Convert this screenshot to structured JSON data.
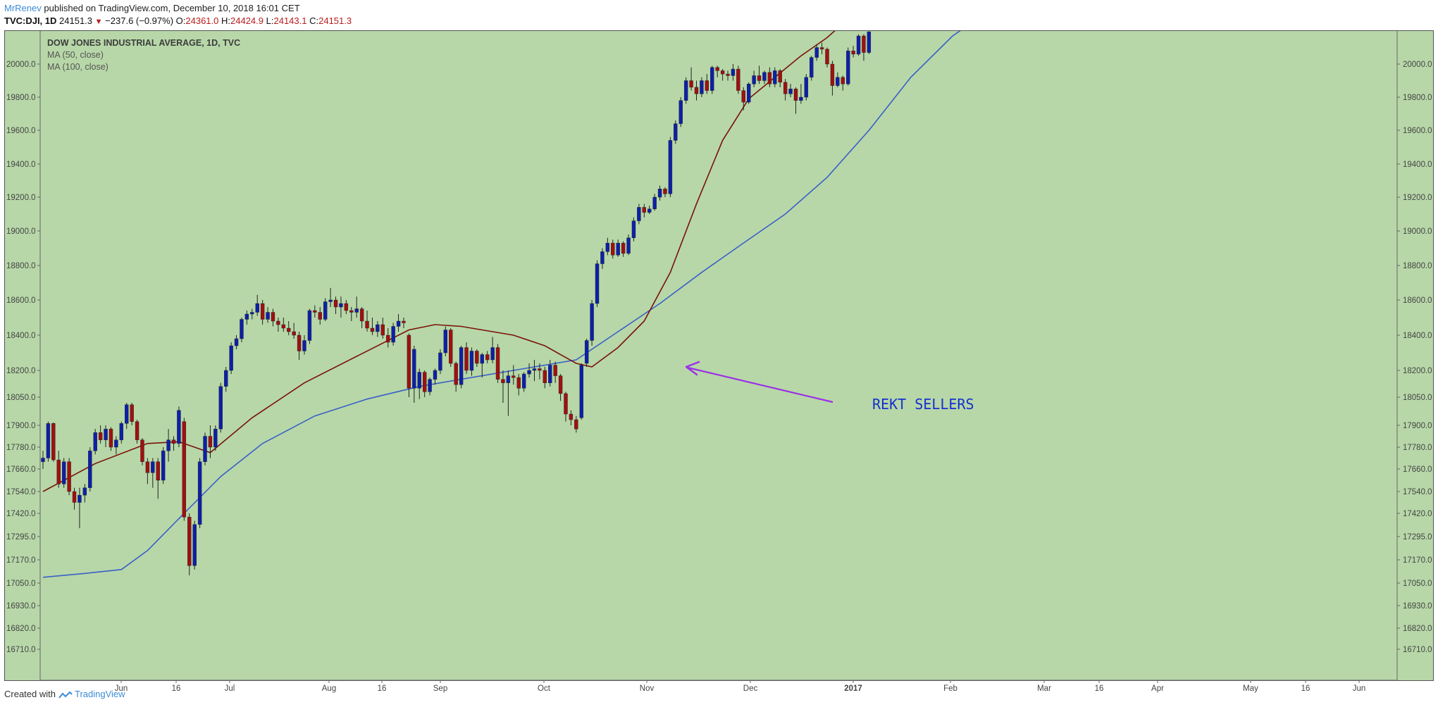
{
  "header": {
    "author": "MrRenev",
    "published_text": "published on TradingView.com, December 10, 2018 16:01 CET",
    "symbol": "TVC:DJI, 1D",
    "last": "24151.3",
    "change": "−237.6 (−0.97%)",
    "o_label": "O:",
    "o_value": "24361.0",
    "h_label": "H:",
    "h_value": "24424.9",
    "l_label": "L:",
    "l_value": "24143.1",
    "c_label": "C:",
    "c_value": "24151.3"
  },
  "legend": {
    "title": "DOW JONES INDUSTRIAL AVERAGE, 1D, TVC",
    "ma50": "MA (50, close)",
    "ma100": "MA (100, close)"
  },
  "annotation": {
    "text": "REKT  SELLERS",
    "color": "#9b30e8"
  },
  "footer": {
    "created": "Created with",
    "brand": "TradingView"
  },
  "colors": {
    "background": "#b7d7a8",
    "up": "#0d1fa8",
    "down": "#a01010",
    "ma50": "#7a1208",
    "ma100": "#3a5fc8",
    "annotation_text": "#1530d0"
  },
  "chart_data": {
    "type": "candlestick",
    "title": "DOW JONES INDUSTRIAL AVERAGE, 1D, TVC",
    "y_ticks": [
      20000.0,
      19800.0,
      19600.0,
      19400.0,
      19200.0,
      19000.0,
      18800.0,
      18600.0,
      18400.0,
      18200.0,
      18050.0,
      17900.0,
      17780.0,
      17660.0,
      17540.0,
      17420.0,
      17295.0,
      17170.0,
      17050.0,
      16930.0,
      16820.0,
      16710.0
    ],
    "x_ticks": [
      "Jun",
      "16",
      "Jul",
      "Aug",
      "16",
      "Sep",
      "Oct",
      "Nov",
      "Dec",
      "2017",
      "Feb",
      "Mar",
      "16",
      "Apr",
      "May",
      "16",
      "Jun"
    ],
    "ohlc": [
      [
        17700,
        17760,
        17660,
        17720
      ],
      [
        17720,
        17920,
        17700,
        17910
      ],
      [
        17910,
        17915,
        17700,
        17710
      ],
      [
        17710,
        17760,
        17560,
        17580
      ],
      [
        17580,
        17720,
        17560,
        17700
      ],
      [
        17700,
        17720,
        17520,
        17540
      ],
      [
        17540,
        17560,
        17440,
        17480
      ],
      [
        17480,
        17560,
        17340,
        17520
      ],
      [
        17520,
        17580,
        17480,
        17560
      ],
      [
        17560,
        17780,
        17540,
        17760
      ],
      [
        17760,
        17880,
        17740,
        17860
      ],
      [
        17860,
        17900,
        17800,
        17820
      ],
      [
        17820,
        17900,
        17780,
        17880
      ],
      [
        17880,
        17890,
        17760,
        17780
      ],
      [
        17780,
        17840,
        17740,
        17820
      ],
      [
        17820,
        17920,
        17800,
        17910
      ],
      [
        17910,
        18020,
        17880,
        18010
      ],
      [
        18010,
        18020,
        17900,
        17920
      ],
      [
        17920,
        17930,
        17800,
        17820
      ],
      [
        17820,
        17830,
        17680,
        17700
      ],
      [
        17700,
        17720,
        17580,
        17640
      ],
      [
        17640,
        17720,
        17560,
        17700
      ],
      [
        17700,
        17720,
        17500,
        17600
      ],
      [
        17600,
        17780,
        17580,
        17760
      ],
      [
        17760,
        17880,
        17700,
        17820
      ],
      [
        17820,
        17840,
        17760,
        17800
      ],
      [
        17800,
        18000,
        17780,
        17980
      ],
      [
        17920,
        17940,
        17380,
        17400
      ],
      [
        17400,
        17420,
        17090,
        17140
      ],
      [
        17140,
        17380,
        17120,
        17360
      ],
      [
        17360,
        17720,
        17340,
        17700
      ],
      [
        17700,
        17860,
        17680,
        17840
      ],
      [
        17840,
        17900,
        17720,
        17780
      ],
      [
        17780,
        17900,
        17760,
        17880
      ],
      [
        17880,
        18130,
        17860,
        18110
      ],
      [
        18110,
        18220,
        18080,
        18200
      ],
      [
        18200,
        18360,
        18180,
        18340
      ],
      [
        18340,
        18400,
        18320,
        18380
      ],
      [
        18380,
        18500,
        18360,
        18490
      ],
      [
        18490,
        18540,
        18460,
        18520
      ],
      [
        18520,
        18550,
        18490,
        18530
      ],
      [
        18530,
        18630,
        18510,
        18580
      ],
      [
        18580,
        18600,
        18460,
        18490
      ],
      [
        18490,
        18560,
        18470,
        18530
      ],
      [
        18530,
        18550,
        18450,
        18480
      ],
      [
        18480,
        18500,
        18420,
        18460
      ],
      [
        18460,
        18500,
        18420,
        18440
      ],
      [
        18440,
        18480,
        18400,
        18420
      ],
      [
        18420,
        18470,
        18380,
        18400
      ],
      [
        18400,
        18420,
        18260,
        18310
      ],
      [
        18310,
        18400,
        18290,
        18370
      ],
      [
        18370,
        18550,
        18350,
        18540
      ],
      [
        18540,
        18570,
        18500,
        18530
      ],
      [
        18530,
        18560,
        18460,
        18490
      ],
      [
        18490,
        18610,
        18480,
        18590
      ],
      [
        18590,
        18670,
        18560,
        18600
      ],
      [
        18600,
        18620,
        18520,
        18560
      ],
      [
        18560,
        18620,
        18500,
        18580
      ],
      [
        18580,
        18600,
        18520,
        18540
      ],
      [
        18540,
        18560,
        18480,
        18530
      ],
      [
        18530,
        18620,
        18500,
        18550
      ],
      [
        18550,
        18560,
        18440,
        18480
      ],
      [
        18480,
        18540,
        18420,
        18440
      ],
      [
        18440,
        18500,
        18400,
        18420
      ],
      [
        18420,
        18480,
        18390,
        18460
      ],
      [
        18460,
        18500,
        18380,
        18400
      ],
      [
        18400,
        18440,
        18330,
        18360
      ],
      [
        18360,
        18470,
        18340,
        18450
      ],
      [
        18450,
        18520,
        18420,
        18480
      ],
      [
        18480,
        18500,
        18440,
        18470
      ],
      [
        18400,
        18410,
        18050,
        18100
      ],
      [
        18100,
        18340,
        18020,
        18320
      ],
      [
        18100,
        18210,
        18040,
        18190
      ],
      [
        18190,
        18200,
        18050,
        18080
      ],
      [
        18080,
        18160,
        18060,
        18150
      ],
      [
        18150,
        18210,
        18120,
        18200
      ],
      [
        18200,
        18320,
        18180,
        18300
      ],
      [
        18300,
        18450,
        18280,
        18430
      ],
      [
        18430,
        18440,
        18220,
        18240
      ],
      [
        18240,
        18250,
        18080,
        18120
      ],
      [
        18120,
        18340,
        18100,
        18330
      ],
      [
        18330,
        18360,
        18180,
        18200
      ],
      [
        18200,
        18330,
        18170,
        18310
      ],
      [
        18310,
        18320,
        18220,
        18240
      ],
      [
        18240,
        18300,
        18160,
        18290
      ],
      [
        18290,
        18310,
        18240,
        18260
      ],
      [
        18260,
        18390,
        18240,
        18330
      ],
      [
        18330,
        18350,
        18130,
        18150
      ],
      [
        18150,
        18200,
        18020,
        18130
      ],
      [
        18130,
        18200,
        17950,
        18170
      ],
      [
        18170,
        18230,
        18120,
        18160
      ],
      [
        18160,
        18180,
        18060,
        18100
      ],
      [
        18100,
        18190,
        18080,
        18180
      ],
      [
        18180,
        18240,
        18160,
        18200
      ],
      [
        18200,
        18260,
        18140,
        18210
      ],
      [
        18210,
        18240,
        18150,
        18200
      ],
      [
        18200,
        18220,
        18100,
        18130
      ],
      [
        18130,
        18260,
        18110,
        18230
      ],
      [
        18230,
        18250,
        18130,
        18170
      ],
      [
        18170,
        18180,
        18030,
        18070
      ],
      [
        18070,
        18080,
        17920,
        17960
      ],
      [
        17960,
        17980,
        17900,
        17930
      ],
      [
        17930,
        17950,
        17860,
        17880
      ],
      [
        17940,
        18240,
        17930,
        18230
      ],
      [
        18240,
        18380,
        18220,
        18370
      ],
      [
        18370,
        18600,
        18340,
        18580
      ],
      [
        18580,
        18830,
        18560,
        18810
      ],
      [
        18810,
        18900,
        18780,
        18880
      ],
      [
        18880,
        18960,
        18860,
        18930
      ],
      [
        18930,
        18950,
        18840,
        18860
      ],
      [
        18860,
        18950,
        18850,
        18930
      ],
      [
        18930,
        18940,
        18850,
        18870
      ],
      [
        18870,
        18980,
        18860,
        18960
      ],
      [
        18960,
        19080,
        18940,
        19060
      ],
      [
        19060,
        19160,
        19040,
        19140
      ],
      [
        19140,
        19160,
        19080,
        19110
      ],
      [
        19110,
        19150,
        19100,
        19130
      ],
      [
        19130,
        19220,
        19120,
        19200
      ],
      [
        19200,
        19270,
        19180,
        19250
      ],
      [
        19250,
        19260,
        19200,
        19220
      ],
      [
        19220,
        19560,
        19200,
        19540
      ],
      [
        19540,
        19660,
        19520,
        19640
      ],
      [
        19640,
        19800,
        19620,
        19780
      ],
      [
        19780,
        19920,
        19760,
        19900
      ],
      [
        19900,
        19980,
        19840,
        19860
      ],
      [
        19860,
        19900,
        19780,
        19820
      ],
      [
        19820,
        19920,
        19800,
        19900
      ],
      [
        19900,
        19940,
        19820,
        19840
      ],
      [
        19840,
        19990,
        19820,
        19980
      ],
      [
        19980,
        19990,
        19920,
        19960
      ],
      [
        19960,
        19970,
        19900,
        19940
      ],
      [
        19940,
        19960,
        19900,
        19930
      ],
      [
        19930,
        20000,
        19900,
        19970
      ],
      [
        19970,
        19990,
        19820,
        19840
      ],
      [
        19840,
        19860,
        19720,
        19770
      ],
      [
        19770,
        19890,
        19760,
        19880
      ],
      [
        19880,
        19960,
        19860,
        19930
      ],
      [
        19930,
        19990,
        19880,
        19900
      ],
      [
        19900,
        19960,
        19880,
        19950
      ],
      [
        19950,
        19980,
        19860,
        19880
      ],
      [
        19880,
        19980,
        19860,
        19960
      ],
      [
        19960,
        19970,
        19860,
        19890
      ],
      [
        19890,
        19910,
        19780,
        19820
      ],
      [
        19820,
        19880,
        19800,
        19850
      ],
      [
        19850,
        19860,
        19700,
        19780
      ],
      [
        19780,
        19880,
        19760,
        19800
      ],
      [
        19800,
        19940,
        19780,
        19920
      ],
      [
        19920,
        20050,
        19900,
        20040
      ],
      [
        20040,
        20120,
        20020,
        20100
      ],
      [
        20100,
        20130,
        20060,
        20090
      ],
      [
        20090,
        20100,
        19980,
        20000
      ],
      [
        20000,
        20020,
        19810,
        19870
      ],
      [
        19870,
        19950,
        19860,
        19920
      ],
      [
        19920,
        19930,
        19840,
        19880
      ],
      [
        19880,
        20100,
        19870,
        20080
      ],
      [
        20080,
        20110,
        20040,
        20060
      ],
      [
        20060,
        20180,
        20050,
        20170
      ],
      [
        20170,
        20180,
        20020,
        20070
      ],
      [
        20070,
        20220,
        20060,
        20210
      ]
    ],
    "ma50": [
      [
        0,
        17540
      ],
      [
        10,
        17690
      ],
      [
        20,
        17800
      ],
      [
        26,
        17810
      ],
      [
        32,
        17750
      ],
      [
        40,
        17940
      ],
      [
        50,
        18130
      ],
      [
        60,
        18280
      ],
      [
        70,
        18430
      ],
      [
        75,
        18460
      ],
      [
        80,
        18450
      ],
      [
        90,
        18400
      ],
      [
        96,
        18340
      ],
      [
        102,
        18240
      ],
      [
        105,
        18220
      ],
      [
        110,
        18330
      ],
      [
        115,
        18480
      ],
      [
        120,
        18760
      ],
      [
        125,
        19160
      ],
      [
        130,
        19540
      ],
      [
        135,
        19790
      ],
      [
        140,
        19920
      ],
      [
        145,
        20050
      ],
      [
        150,
        20160
      ],
      [
        156,
        20330
      ],
      [
        165,
        20590
      ],
      [
        170,
        20700
      ]
    ],
    "ma100": [
      [
        0,
        17080
      ],
      [
        8,
        17100
      ],
      [
        15,
        17120
      ],
      [
        20,
        17220
      ],
      [
        27,
        17420
      ],
      [
        34,
        17620
      ],
      [
        42,
        17800
      ],
      [
        52,
        17950
      ],
      [
        62,
        18040
      ],
      [
        72,
        18110
      ],
      [
        82,
        18160
      ],
      [
        92,
        18210
      ],
      [
        102,
        18260
      ],
      [
        110,
        18420
      ],
      [
        118,
        18580
      ],
      [
        126,
        18760
      ],
      [
        134,
        18930
      ],
      [
        142,
        19100
      ],
      [
        150,
        19320
      ],
      [
        158,
        19600
      ],
      [
        166,
        19920
      ],
      [
        174,
        20170
      ],
      [
        180,
        20300
      ]
    ]
  }
}
